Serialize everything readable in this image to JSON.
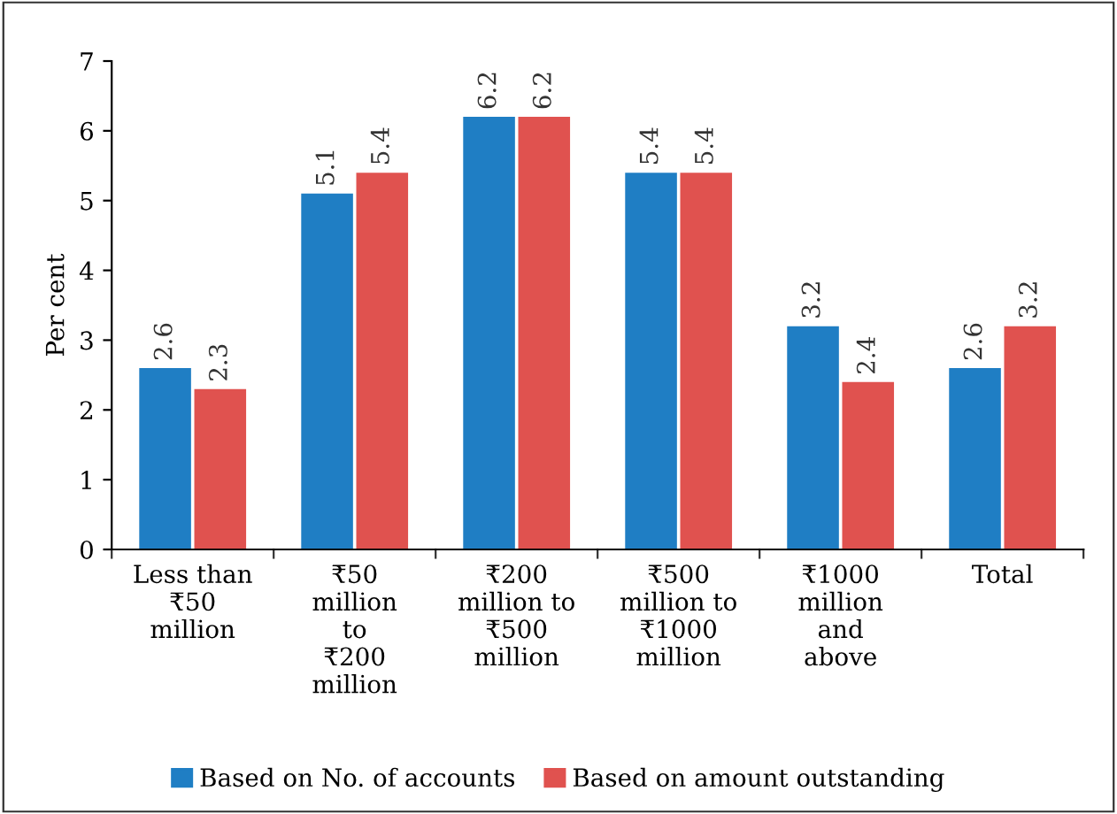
{
  "chart_data": {
    "type": "bar",
    "ylabel": "Per cent",
    "categories": [
      "Less than\n₹50\nmillion",
      "₹50\nmillion\nto\n₹200\nmillion",
      "₹200\nmillion to\n₹500\nmillion",
      "₹500\nmillion to\n₹1000\nmillion",
      "₹1000\nmillion\nand\nabove",
      "Total"
    ],
    "series": [
      {
        "name": "Based on No. of accounts",
        "color": "#1f7ec4",
        "values": [
          2.6,
          5.1,
          6.2,
          5.4,
          3.2,
          2.6
        ]
      },
      {
        "name": "Based on amount outstanding",
        "color": "#e0524f",
        "values": [
          2.3,
          5.4,
          6.2,
          5.4,
          2.4,
          3.2
        ]
      }
    ],
    "ylim": [
      0,
      7
    ],
    "yticks": [
      0,
      1,
      2,
      3,
      4,
      5,
      6,
      7
    ],
    "data_labels": true,
    "legend": "bottom",
    "grid": false
  }
}
